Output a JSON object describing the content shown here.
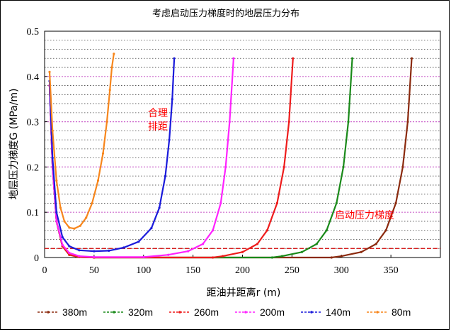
{
  "chart_data": {
    "type": "line",
    "title": "考虑启动压力梯度时的地层压力分布",
    "xlabel": "距油井距离r (m)",
    "ylabel": "地层压力梯度G (MPa/m)",
    "xlim": [
      0,
      400
    ],
    "ylim": [
      0,
      0.5
    ],
    "xticks": [
      0,
      50,
      100,
      150,
      200,
      250,
      300,
      350
    ],
    "yticks": [
      0,
      0.1,
      0.2,
      0.3,
      0.4,
      0.5
    ],
    "ytick_labels": [
      "0",
      "0.1",
      "0.2",
      "0.3",
      "0.4",
      "0.5"
    ],
    "threshold_gradient": 0.02,
    "annotations": {
      "reasonable_spacing_line1": "合理",
      "reasonable_spacing_line2": "排距",
      "threshold_label": "启动压力梯度"
    },
    "series": [
      {
        "name": "380m",
        "color": "#8b2a0e",
        "half_spacing": 380,
        "points": [
          [
            5,
            0.38
          ],
          [
            8,
            0.2
          ],
          [
            12,
            0.08
          ],
          [
            18,
            0.025
          ],
          [
            25,
            0.006
          ],
          [
            35,
            0.001
          ],
          [
            50,
            0
          ],
          [
            290,
            0
          ],
          [
            300,
            0.003
          ],
          [
            320,
            0.012
          ],
          [
            335,
            0.03
          ],
          [
            345,
            0.06
          ],
          [
            355,
            0.12
          ],
          [
            362,
            0.2
          ],
          [
            367,
            0.3
          ],
          [
            371,
            0.44
          ]
        ]
      },
      {
        "name": "320m",
        "color": "#1a8a1a",
        "half_spacing": 320,
        "points": [
          [
            5,
            0.38
          ],
          [
            8,
            0.2
          ],
          [
            12,
            0.08
          ],
          [
            18,
            0.025
          ],
          [
            25,
            0.006
          ],
          [
            35,
            0.001
          ],
          [
            50,
            0
          ],
          [
            230,
            0
          ],
          [
            240,
            0.003
          ],
          [
            260,
            0.012
          ],
          [
            275,
            0.03
          ],
          [
            285,
            0.06
          ],
          [
            295,
            0.12
          ],
          [
            302,
            0.2
          ],
          [
            307,
            0.3
          ],
          [
            311,
            0.44
          ]
        ]
      },
      {
        "name": "260m",
        "color": "#ee1c1c",
        "half_spacing": 260,
        "points": [
          [
            5,
            0.38
          ],
          [
            8,
            0.2
          ],
          [
            12,
            0.08
          ],
          [
            18,
            0.025
          ],
          [
            25,
            0.006
          ],
          [
            35,
            0.001
          ],
          [
            50,
            0
          ],
          [
            170,
            0
          ],
          [
            180,
            0.003
          ],
          [
            200,
            0.012
          ],
          [
            215,
            0.03
          ],
          [
            225,
            0.06
          ],
          [
            235,
            0.12
          ],
          [
            242,
            0.2
          ],
          [
            247,
            0.3
          ],
          [
            251,
            0.44
          ]
        ]
      },
      {
        "name": "200m",
        "color": "#ff22ff",
        "half_spacing": 200,
        "points": [
          [
            5,
            0.38
          ],
          [
            8,
            0.2
          ],
          [
            12,
            0.08
          ],
          [
            18,
            0.028
          ],
          [
            25,
            0.01
          ],
          [
            35,
            0.003
          ],
          [
            50,
            0.001
          ],
          [
            100,
            0.001
          ],
          [
            125,
            0.006
          ],
          [
            145,
            0.014
          ],
          [
            160,
            0.03
          ],
          [
            170,
            0.06
          ],
          [
            178,
            0.12
          ],
          [
            183,
            0.2
          ],
          [
            187,
            0.3
          ],
          [
            191,
            0.44
          ]
        ]
      },
      {
        "name": "140m",
        "color": "#1a1adb",
        "half_spacing": 140,
        "points": [
          [
            5,
            0.39
          ],
          [
            8,
            0.22
          ],
          [
            12,
            0.1
          ],
          [
            18,
            0.045
          ],
          [
            25,
            0.025
          ],
          [
            35,
            0.016
          ],
          [
            50,
            0.014
          ],
          [
            65,
            0.015
          ],
          [
            80,
            0.022
          ],
          [
            95,
            0.035
          ],
          [
            108,
            0.065
          ],
          [
            116,
            0.11
          ],
          [
            122,
            0.18
          ],
          [
            126,
            0.26
          ],
          [
            129,
            0.35
          ],
          [
            131,
            0.44
          ]
        ]
      },
      {
        "name": "80m",
        "color": "#f7861c",
        "half_spacing": 80,
        "points": [
          [
            5,
            0.41
          ],
          [
            8,
            0.28
          ],
          [
            12,
            0.17
          ],
          [
            16,
            0.11
          ],
          [
            20,
            0.08
          ],
          [
            25,
            0.066
          ],
          [
            30,
            0.064
          ],
          [
            36,
            0.07
          ],
          [
            42,
            0.088
          ],
          [
            48,
            0.12
          ],
          [
            54,
            0.17
          ],
          [
            59,
            0.23
          ],
          [
            63,
            0.3
          ],
          [
            66,
            0.37
          ],
          [
            68,
            0.42
          ],
          [
            70,
            0.45
          ]
        ]
      }
    ]
  }
}
